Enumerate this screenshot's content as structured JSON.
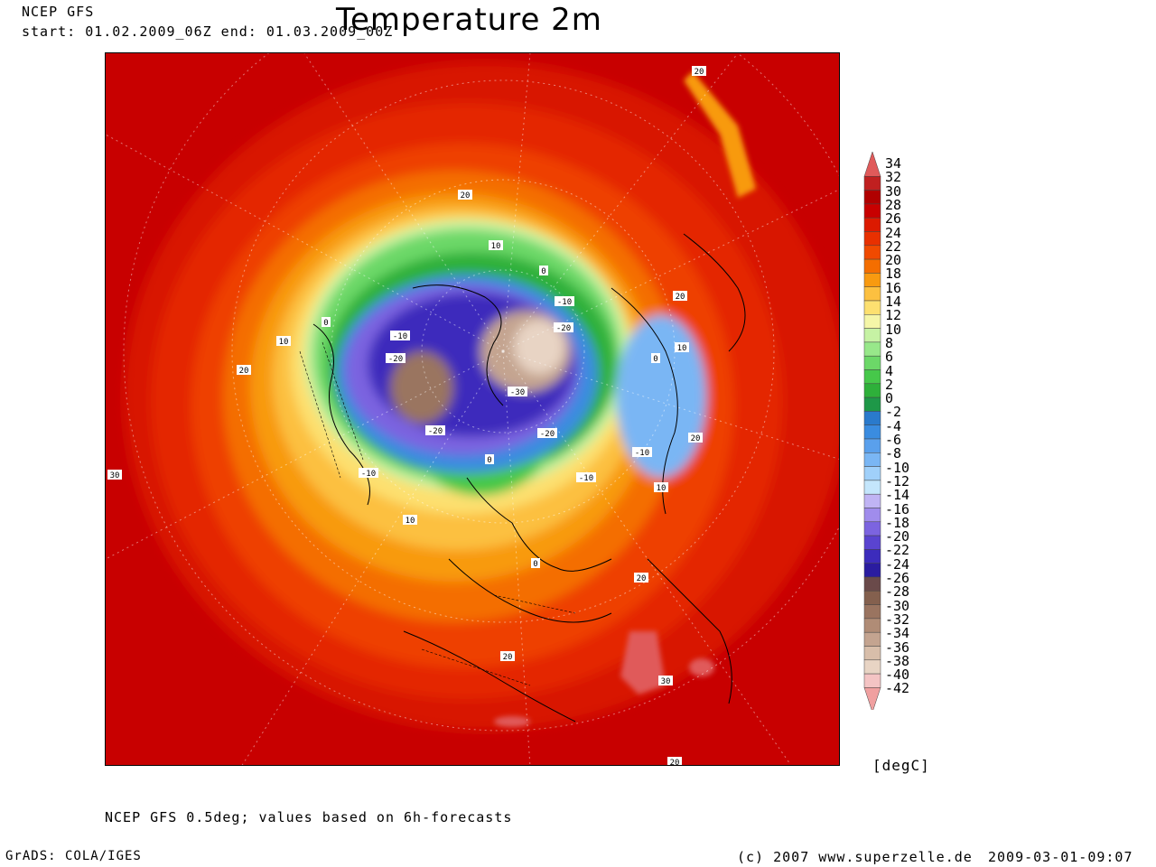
{
  "header": {
    "source": "NCEP GFS",
    "period": "start: 01.02.2009_06Z end: 01.03.2009_00Z",
    "title": "Temperature 2m"
  },
  "footer": {
    "note": "NCEP GFS 0.5deg; values based on 6h-forecasts",
    "software": "GrADS: COLA/IGES",
    "copyright": "(c) 2007 www.superzelle.de",
    "timestamp": "2009-03-01-09:07"
  },
  "legend": {
    "unit": "[degC]",
    "levels": [
      "34",
      "32",
      "30",
      "28",
      "26",
      "24",
      "22",
      "20",
      "18",
      "16",
      "14",
      "12",
      "10",
      "8",
      "6",
      "4",
      "2",
      "0",
      "-2",
      "-4",
      "-6",
      "-8",
      "-10",
      "-12",
      "-14",
      "-16",
      "-18",
      "-20",
      "-22",
      "-24",
      "-26",
      "-28",
      "-30",
      "-32",
      "-34",
      "-36",
      "-38",
      "-40",
      "-42"
    ],
    "colors": [
      "#e05a5a",
      "#c02020",
      "#b00000",
      "#c80000",
      "#dc1a00",
      "#e83000",
      "#f04a00",
      "#f46e00",
      "#f89a10",
      "#fcc040",
      "#fde070",
      "#f5f6a8",
      "#c6f2a4",
      "#98e88a",
      "#6cd868",
      "#46c84a",
      "#2eb03a",
      "#1e9848",
      "#2a7acc",
      "#3a8ce0",
      "#5aa0ec",
      "#7ab6f4",
      "#a0d0fa",
      "#c4e6fc",
      "#c0b4f4",
      "#a08cec",
      "#7c64e0",
      "#5a44d0",
      "#3c2cbc",
      "#2a1ca0",
      "#6a4a4a",
      "#84604e",
      "#9a7460",
      "#b08c76",
      "#c4a490",
      "#d8beaa",
      "#e8d4c4",
      "#f4c4c4",
      "#f0a0a0"
    ]
  },
  "map": {
    "contour_labels": [
      {
        "text": "20"
      },
      {
        "text": "20"
      },
      {
        "text": "10"
      },
      {
        "text": "0"
      },
      {
        "text": "0"
      },
      {
        "text": "-10"
      },
      {
        "text": "-20"
      },
      {
        "text": "-10"
      },
      {
        "text": "-20"
      },
      {
        "text": "10"
      },
      {
        "text": "20"
      },
      {
        "text": "-30"
      },
      {
        "text": "-20"
      },
      {
        "text": "-20"
      },
      {
        "text": "-10"
      },
      {
        "text": "0"
      },
      {
        "text": "-10"
      },
      {
        "text": "0"
      },
      {
        "text": "10"
      },
      {
        "text": "20"
      },
      {
        "text": "20"
      },
      {
        "text": "10"
      },
      {
        "text": "0"
      },
      {
        "text": "-10"
      },
      {
        "text": "10"
      },
      {
        "text": "20"
      },
      {
        "text": "20"
      },
      {
        "text": "30"
      },
      {
        "text": "20"
      },
      {
        "text": "20"
      },
      {
        "text": "30"
      }
    ]
  }
}
